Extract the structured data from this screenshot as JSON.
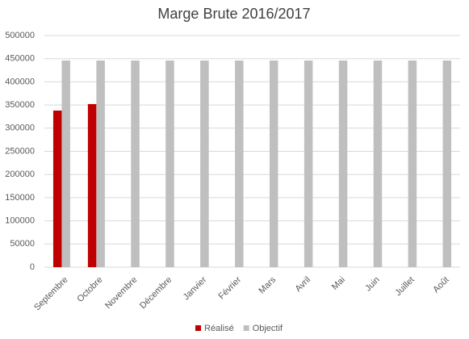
{
  "chart_data": {
    "type": "bar",
    "title": "Marge Brute 2016/2017",
    "categories": [
      "Septembre",
      "Octobre",
      "Novembre",
      "Décembre",
      "Janvier",
      "Février",
      "Mars",
      "Avril",
      "Mai",
      "Juin",
      "Juillet",
      "Août"
    ],
    "series": [
      {
        "name": "Réalisé",
        "color": "#c00000",
        "values": [
          338000,
          352000,
          null,
          null,
          null,
          null,
          null,
          null,
          null,
          null,
          null,
          null
        ]
      },
      {
        "name": "Objectif",
        "color": "#bfbfbf",
        "values": [
          446000,
          446000,
          446000,
          446000,
          446000,
          446000,
          446000,
          446000,
          446000,
          446000,
          446000,
          446000
        ]
      }
    ],
    "ylim": [
      0,
      500000
    ],
    "yticks": [
      0,
      50000,
      100000,
      150000,
      200000,
      250000,
      300000,
      350000,
      400000,
      450000,
      500000
    ],
    "grid": true,
    "legend": "bottom"
  }
}
